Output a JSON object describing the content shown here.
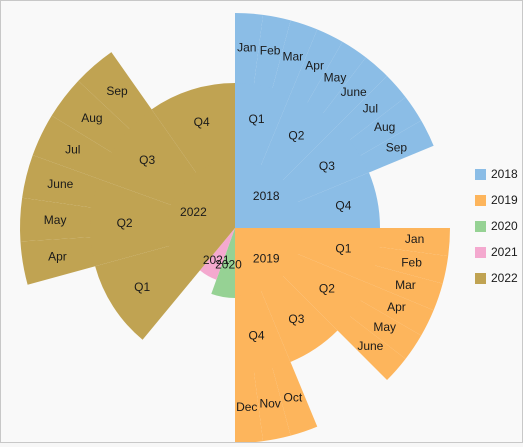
{
  "chart_data": {
    "type": "sunburst",
    "title": "",
    "legend_position": "right",
    "series": [
      {
        "name": "2018",
        "color": "#8bbde6",
        "quarters": [
          {
            "label": "Q1",
            "value": 1.0,
            "months": [
              {
                "label": "Jan",
                "value": 1.0
              },
              {
                "label": "Feb",
                "value": 1.0
              },
              {
                "label": "Mar",
                "value": 1.0
              }
            ]
          },
          {
            "label": "Q2",
            "value": 1.0,
            "months": [
              {
                "label": "Apr",
                "value": 1.0
              },
              {
                "label": "May",
                "value": 1.0
              },
              {
                "label": "June",
                "value": 1.0
              }
            ]
          },
          {
            "label": "Q3",
            "value": 1.0,
            "months": [
              {
                "label": "Jul",
                "value": 1.0
              },
              {
                "label": "Aug",
                "value": 1.0
              },
              {
                "label": "Sep",
                "value": 1.0
              }
            ]
          },
          {
            "label": "Q4",
            "value": 1.0,
            "months": []
          }
        ]
      },
      {
        "name": "2019",
        "color": "#fdb55c",
        "quarters": [
          {
            "label": "Q1",
            "value": 1.0,
            "months": [
              {
                "label": "Jan",
                "value": 1.0
              },
              {
                "label": "Feb",
                "value": 1.0
              },
              {
                "label": "Mar",
                "value": 1.0
              }
            ]
          },
          {
            "label": "Q2",
            "value": 1.0,
            "months": [
              {
                "label": "Apr",
                "value": 1.0
              },
              {
                "label": "May",
                "value": 1.0
              },
              {
                "label": "June",
                "value": 1.0
              }
            ]
          },
          {
            "label": "Q3",
            "value": 1.0,
            "months": []
          },
          {
            "label": "Q4",
            "value": 1.0,
            "months": [
              {
                "label": "Oct",
                "value": 1.0
              },
              {
                "label": "Nov",
                "value": 1.0
              },
              {
                "label": "Dec",
                "value": 1.0
              }
            ]
          }
        ]
      },
      {
        "name": "2020",
        "color": "#96d294",
        "quarters": []
      },
      {
        "name": "2021",
        "color": "#f4a9cf",
        "quarters": []
      },
      {
        "name": "2022",
        "color": "#c0a352",
        "quarters": [
          {
            "label": "Q1",
            "value": 1.0,
            "months": []
          },
          {
            "label": "Q2",
            "value": 1.0,
            "months": [
              {
                "label": "Apr",
                "value": 1.0
              },
              {
                "label": "May",
                "value": 1.0
              },
              {
                "label": "June",
                "value": 1.0
              }
            ]
          },
          {
            "label": "Q3",
            "value": 1.0,
            "months": [
              {
                "label": "Jul",
                "value": 1.0
              },
              {
                "label": "Aug",
                "value": 1.0
              },
              {
                "label": "Sep",
                "value": 1.0
              }
            ]
          },
          {
            "label": "Q4",
            "value": 1.0,
            "months": []
          }
        ]
      }
    ],
    "legend": [
      "2018",
      "2019",
      "2020",
      "2021",
      "2022"
    ]
  }
}
